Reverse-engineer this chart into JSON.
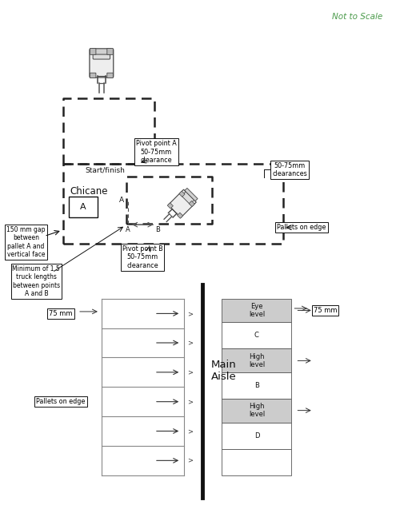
{
  "not_to_scale": "Not to Scale",
  "not_to_scale_color": "#4a9a4a",
  "bg_color": "#ffffff",
  "dashed_line_color": "#222222",
  "solid_line_color": "#111111",
  "gray_line_color": "#888888",
  "pivot_A_label": "Pivot point A\n50-75mm\nclearance",
  "pivot_B_label": "Pivot point B\n50-75mm\nclearance",
  "clearances_label": "50-75mm\nclearances",
  "chicane_label": "Chicane",
  "start_label": "Start/finish",
  "pallet_gap_label": "150 mm gap\nbetween\npallet A and\nvertical face",
  "min_truck_label": "Minimum of 1.5\ntruck lengths\nbetween points\nA and B",
  "pallets_edge_upper": "Pallets on edge",
  "pallets_edge_lower": "Pallets on edge",
  "main_aisle_label": "Main\nAisle",
  "eye_level_label": "Eye\nlevel",
  "high_level_label": "High\nlevel",
  "c_label": "C",
  "b_label": "B",
  "d_label": "D",
  "pallet_A_box": "A",
  "mm75_left": "75 mm",
  "mm75_right": "75 mm"
}
